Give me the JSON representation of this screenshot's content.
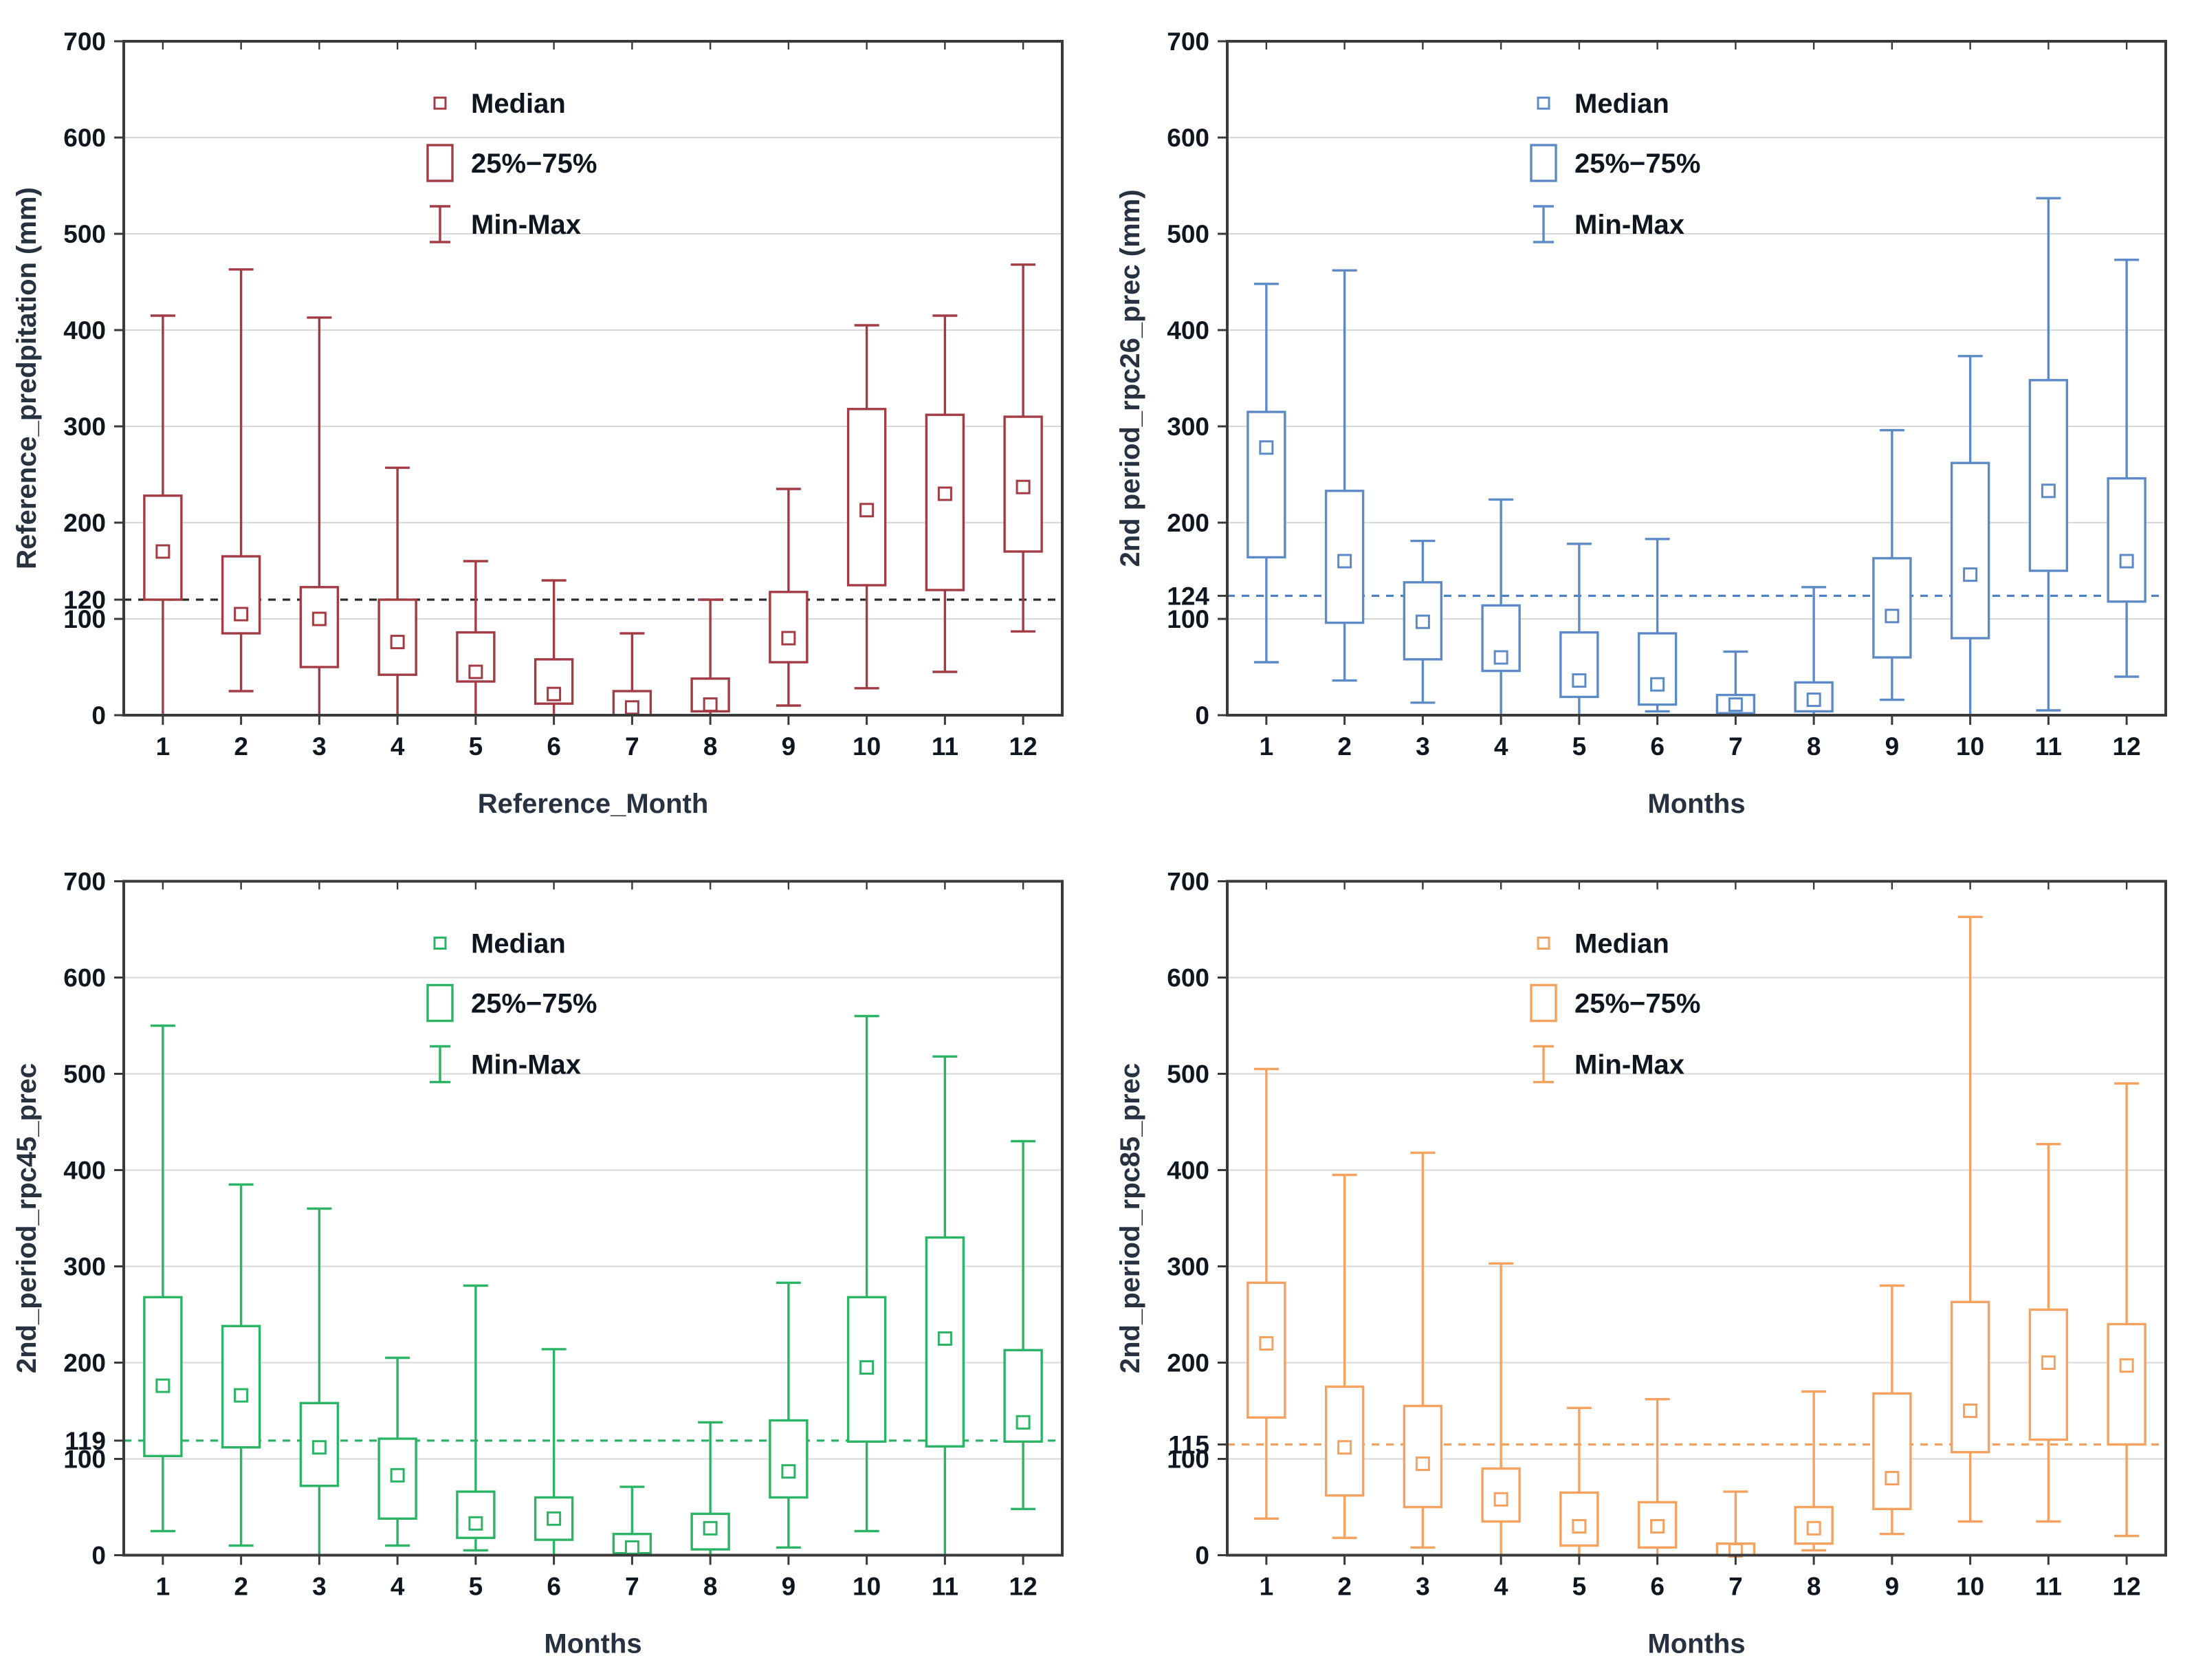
{
  "ui": {
    "legend": {
      "median": "Median",
      "box": "25%−75%",
      "minmax": "Min-Max"
    },
    "frame_color": "#3a3a3a",
    "grid_color": "#d8d8d8",
    "tick_text_color": "#10161f",
    "background": "#ffffff"
  },
  "chart_data": [
    {
      "type": "box",
      "position": "top-left",
      "name": "reference",
      "ylabel": "Reference_predpitation (mm)",
      "xlabel": "Reference_Month",
      "series_color": "#a23b44",
      "refline": {
        "value": 120,
        "label": "120",
        "color": "#2b2b2b"
      },
      "ylim": [
        0,
        700
      ],
      "y_ticks": [
        0,
        100,
        200,
        300,
        400,
        500,
        600,
        700
      ],
      "y_tick_labels": [
        "0",
        "100",
        "120",
        "200",
        "300",
        "400",
        "500",
        "600",
        "700"
      ],
      "categories": [
        "1",
        "2",
        "3",
        "4",
        "5",
        "6",
        "7",
        "8",
        "9",
        "10",
        "11",
        "12"
      ],
      "boxes_min_q1_med_q3_max": [
        [
          0,
          120,
          170,
          228,
          415
        ],
        [
          25,
          85,
          105,
          165,
          463
        ],
        [
          0,
          50,
          100,
          133,
          413
        ],
        [
          0,
          42,
          76,
          120,
          257
        ],
        [
          0,
          35,
          45,
          86,
          160
        ],
        [
          0,
          12,
          22,
          58,
          140
        ],
        [
          0,
          0,
          8,
          25,
          85
        ],
        [
          0,
          4,
          11,
          38,
          120
        ],
        [
          10,
          55,
          80,
          128,
          235
        ],
        [
          28,
          135,
          213,
          318,
          405
        ],
        [
          45,
          130,
          230,
          312,
          415
        ],
        [
          87,
          170,
          237,
          310,
          468
        ]
      ],
      "legend_position": "top-center",
      "grid": "horizontal"
    },
    {
      "type": "box",
      "position": "top-right",
      "name": "rpc26",
      "ylabel": "2nd period_rpc26_prec (mm)",
      "xlabel": "Months",
      "series_color": "#5c8ac6",
      "refline": {
        "value": 124,
        "label": "124",
        "color": "#4e80c2"
      },
      "ylim": [
        0,
        700
      ],
      "y_ticks": [
        0,
        100,
        200,
        300,
        400,
        500,
        600,
        700
      ],
      "y_tick_labels": [
        "0",
        "100",
        "124",
        "200",
        "300",
        "400",
        "500",
        "600",
        "700"
      ],
      "categories": [
        "1",
        "2",
        "3",
        "4",
        "5",
        "6",
        "7",
        "8",
        "9",
        "10",
        "11",
        "12"
      ],
      "boxes_min_q1_med_q3_max": [
        [
          55,
          164,
          278,
          315,
          448
        ],
        [
          36,
          96,
          160,
          233,
          462
        ],
        [
          13,
          58,
          97,
          138,
          181
        ],
        [
          0,
          46,
          60,
          114,
          224
        ],
        [
          0,
          19,
          36,
          86,
          178
        ],
        [
          4,
          11,
          32,
          85,
          183
        ],
        [
          0,
          2,
          11,
          21,
          66
        ],
        [
          0,
          4,
          16,
          34,
          133
        ],
        [
          16,
          60,
          103,
          163,
          296
        ],
        [
          0,
          80,
          146,
          262,
          373
        ],
        [
          5,
          150,
          233,
          348,
          537
        ],
        [
          40,
          118,
          160,
          246,
          473
        ]
      ],
      "legend_position": "top-center",
      "grid": "horizontal"
    },
    {
      "type": "box",
      "position": "bottom-left",
      "name": "rpc45",
      "ylabel": "2nd_period_rpc45_prec",
      "xlabel": "Months",
      "series_color": "#2bb465",
      "refline": {
        "value": 119,
        "label": "119",
        "color": "#2bb465"
      },
      "ylim": [
        0,
        700
      ],
      "y_ticks": [
        0,
        100,
        200,
        300,
        400,
        500,
        600,
        700
      ],
      "y_tick_labels": [
        "0",
        "100",
        "119",
        "200",
        "300",
        "400",
        "500",
        "600",
        "700"
      ],
      "categories": [
        "1",
        "2",
        "3",
        "4",
        "5",
        "6",
        "7",
        "8",
        "9",
        "10",
        "11",
        "12"
      ],
      "boxes_min_q1_med_q3_max": [
        [
          25,
          103,
          176,
          268,
          550
        ],
        [
          10,
          112,
          166,
          238,
          385
        ],
        [
          0,
          72,
          112,
          158,
          360
        ],
        [
          10,
          38,
          83,
          121,
          205
        ],
        [
          5,
          18,
          33,
          66,
          280
        ],
        [
          0,
          16,
          38,
          60,
          214
        ],
        [
          0,
          2,
          8,
          22,
          71
        ],
        [
          0,
          6,
          28,
          43,
          138
        ],
        [
          8,
          60,
          87,
          140,
          283
        ],
        [
          25,
          118,
          195,
          268,
          560
        ],
        [
          0,
          113,
          225,
          330,
          518
        ],
        [
          48,
          118,
          138,
          213,
          430
        ]
      ],
      "legend_position": "top-center",
      "grid": "horizontal"
    },
    {
      "type": "box",
      "position": "bottom-right",
      "name": "rpc85",
      "ylabel": "2nd_period_rpc85_prec",
      "xlabel": "Months",
      "series_color": "#f5a15f",
      "refline": {
        "value": 115,
        "label": "115",
        "color": "#f0a060"
      },
      "ylim": [
        0,
        700
      ],
      "y_ticks": [
        0,
        100,
        200,
        300,
        400,
        500,
        600,
        700
      ],
      "y_tick_labels": [
        "0",
        "100",
        "115",
        "200",
        "300",
        "400",
        "500",
        "600",
        "700"
      ],
      "categories": [
        "1",
        "2",
        "3",
        "4",
        "5",
        "6",
        "7",
        "8",
        "9",
        "10",
        "11",
        "12"
      ],
      "boxes_min_q1_med_q3_max": [
        [
          38,
          143,
          220,
          283,
          505
        ],
        [
          18,
          62,
          112,
          175,
          395
        ],
        [
          8,
          50,
          95,
          155,
          418
        ],
        [
          0,
          35,
          58,
          90,
          303
        ],
        [
          0,
          10,
          30,
          65,
          153
        ],
        [
          0,
          8,
          30,
          55,
          162
        ],
        [
          0,
          0,
          5,
          12,
          66
        ],
        [
          5,
          12,
          28,
          50,
          170
        ],
        [
          22,
          48,
          80,
          168,
          280
        ],
        [
          35,
          107,
          150,
          263,
          663
        ],
        [
          35,
          120,
          200,
          255,
          427
        ],
        [
          20,
          115,
          197,
          240,
          490
        ]
      ],
      "legend_position": "top-center",
      "grid": "horizontal"
    }
  ]
}
